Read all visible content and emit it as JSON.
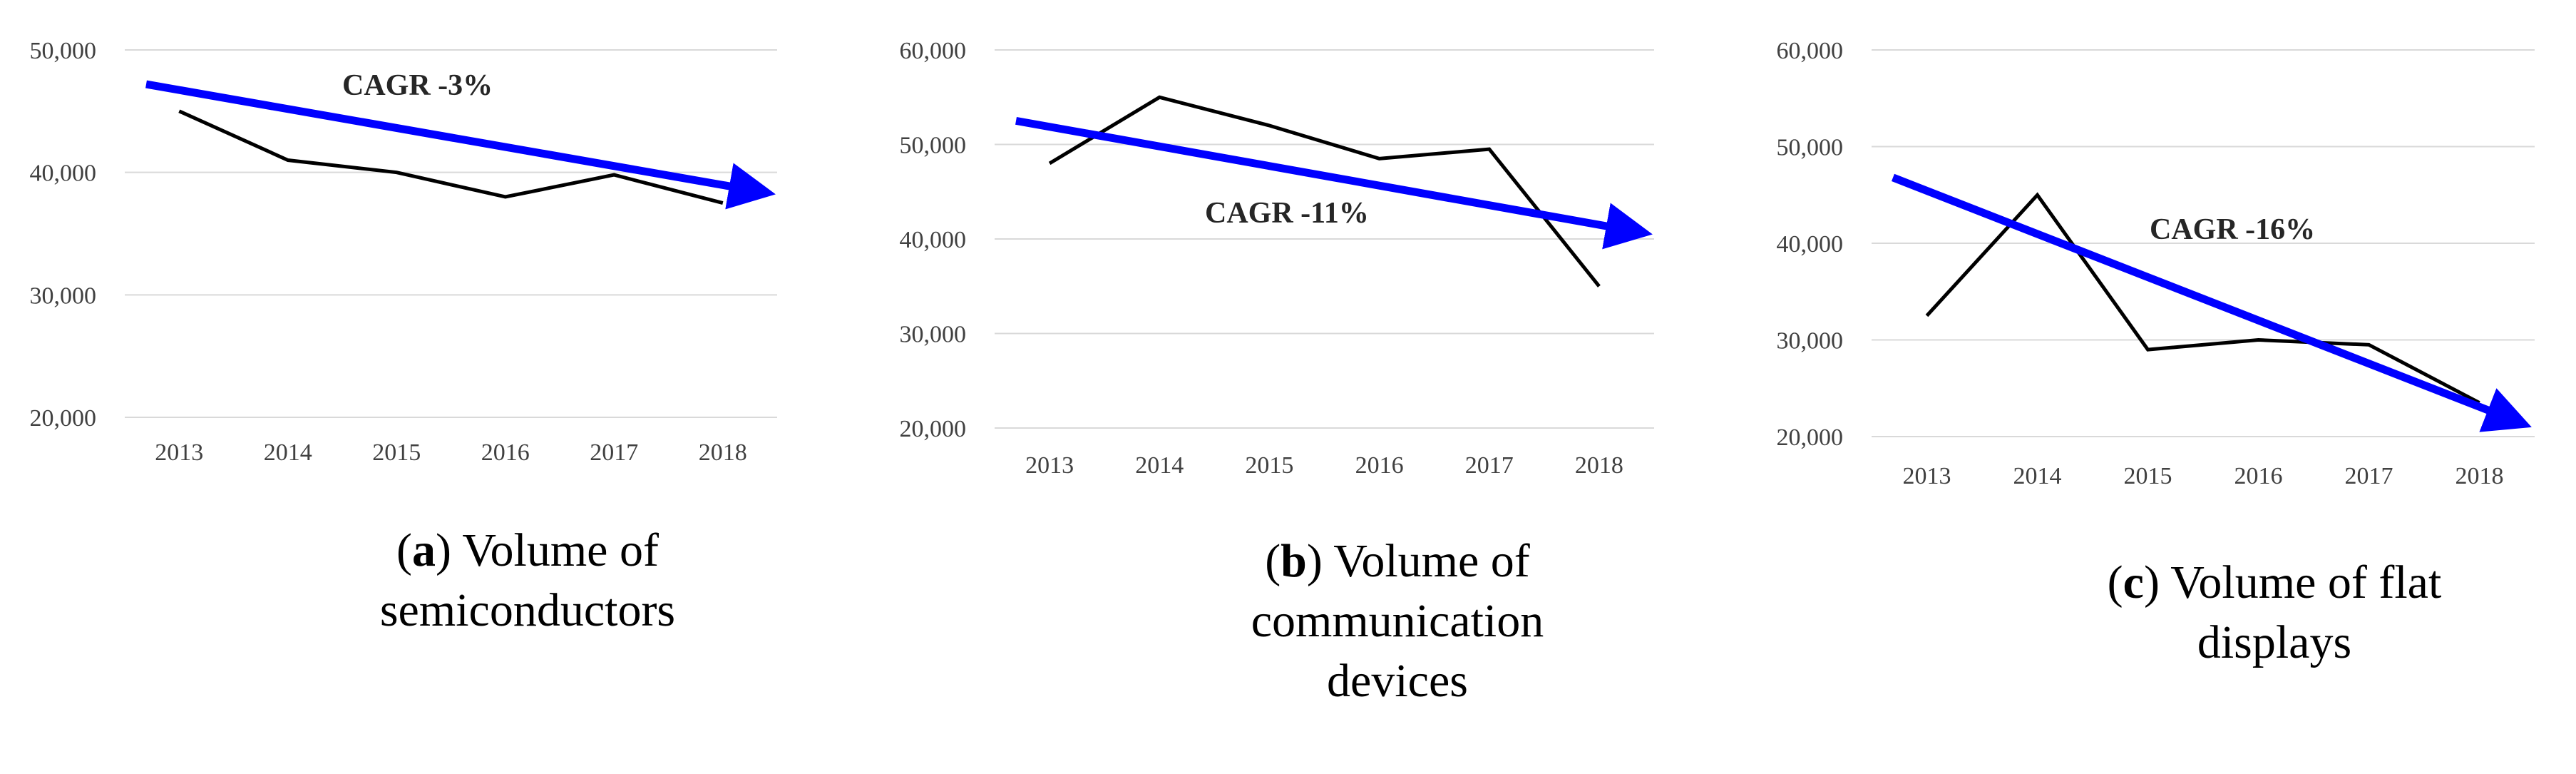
{
  "chart_data": [
    {
      "type": "line",
      "x": [
        "2013",
        "2014",
        "2015",
        "2016",
        "2017",
        "2018"
      ],
      "series": [
        {
          "values": [
            45000,
            41000,
            40000,
            38000,
            39800,
            37500
          ],
          "color": "#000000"
        }
      ],
      "trend": {
        "from": 47200,
        "to": 38600,
        "color": "#0000ff",
        "arrow": true
      },
      "annotation": "CAGR -3%",
      "yticks": [
        "50,000",
        "40,000",
        "30,000",
        "20,000"
      ],
      "ylim": [
        20000,
        50000
      ],
      "grid": true,
      "caption": {
        "letter": "a",
        "text": "Volume of semiconductors"
      }
    },
    {
      "type": "line",
      "x": [
        "2013",
        "2014",
        "2015",
        "2016",
        "2017",
        "2018"
      ],
      "series": [
        {
          "values": [
            48000,
            55000,
            52000,
            48500,
            49500,
            35000
          ],
          "color": "#000000"
        }
      ],
      "trend": {
        "from": 52500,
        "to": 41000,
        "color": "#0000ff",
        "arrow": true
      },
      "annotation": "CAGR -11%",
      "yticks": [
        "60,000",
        "50,000",
        "40,000",
        "30,000",
        "20,000"
      ],
      "ylim": [
        20000,
        60000
      ],
      "grid": true,
      "caption": {
        "letter": "b",
        "text": "Volume of communication devices"
      }
    },
    {
      "type": "line",
      "x": [
        "2013",
        "2014",
        "2015",
        "2016",
        "2017",
        "2018"
      ],
      "series": [
        {
          "values": [
            32500,
            45000,
            29000,
            30000,
            29500,
            23500
          ],
          "color": "#000000"
        }
      ],
      "trend": {
        "from": 46800,
        "to": 22000,
        "color": "#0000ff",
        "arrow": true
      },
      "annotation": "CAGR -16%",
      "yticks": [
        "60,000",
        "50,000",
        "40,000",
        "30,000",
        "20,000"
      ],
      "ylim": [
        20000,
        60000
      ],
      "grid": true,
      "caption": {
        "letter": "c",
        "text": "Volume of flat displays"
      }
    }
  ]
}
